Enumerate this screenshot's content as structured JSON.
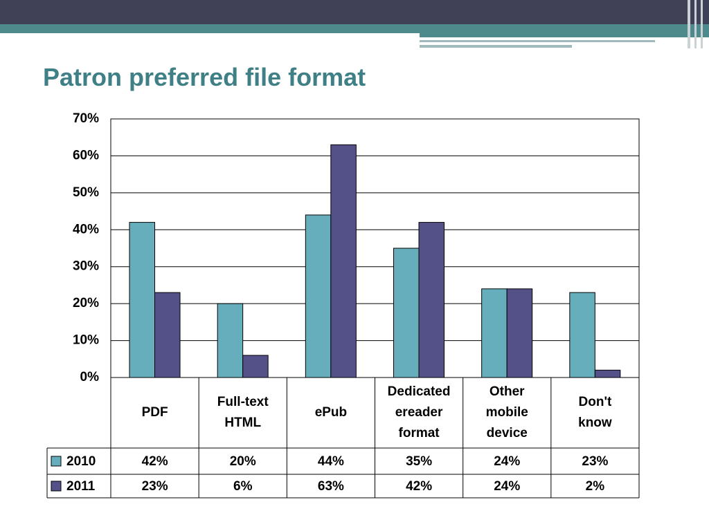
{
  "chart_data": {
    "type": "bar",
    "title": "Patron preferred file format",
    "categories": [
      "PDF",
      "Full-text\nHTML",
      "ePub",
      "Dedicated\nereader\nformat",
      "Other\nmobile\ndevice",
      "Don't\nknow"
    ],
    "series": [
      {
        "name": "2010",
        "color": "#67aebc",
        "values": [
          42,
          20,
          44,
          35,
          24,
          23
        ],
        "value_labels": [
          "42%",
          "20%",
          "44%",
          "35%",
          "24%",
          "23%"
        ]
      },
      {
        "name": "2011",
        "color": "#545189",
        "values": [
          23,
          6,
          63,
          42,
          24,
          2
        ],
        "value_labels": [
          "23%",
          "6%",
          "63%",
          "42%",
          "24%",
          "2%"
        ]
      }
    ],
    "ylim": [
      0,
      70
    ],
    "yticks": [
      {
        "value": 0,
        "label": "0%"
      },
      {
        "value": 10,
        "label": "10%"
      },
      {
        "value": 20,
        "label": "20%"
      },
      {
        "value": 30,
        "label": "30%"
      },
      {
        "value": 40,
        "label": "40%"
      },
      {
        "value": 50,
        "label": "50%"
      },
      {
        "value": 60,
        "label": "60%"
      },
      {
        "value": 70,
        "label": "70%"
      }
    ],
    "grid": true
  }
}
